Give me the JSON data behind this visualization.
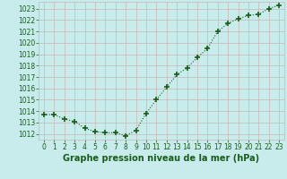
{
  "x": [
    0,
    1,
    2,
    3,
    4,
    5,
    6,
    7,
    8,
    9,
    10,
    11,
    12,
    13,
    14,
    15,
    16,
    17,
    18,
    19,
    20,
    21,
    22,
    23
  ],
  "y": [
    1013.7,
    1013.7,
    1013.3,
    1013.1,
    1012.5,
    1012.2,
    1012.1,
    1012.1,
    1011.85,
    1012.3,
    1013.8,
    1015.0,
    1016.1,
    1017.2,
    1017.8,
    1018.7,
    1019.5,
    1021.0,
    1021.7,
    1022.1,
    1022.4,
    1022.5,
    1023.0,
    1023.3
  ],
  "ylim_min": 1011.5,
  "ylim_max": 1023.6,
  "ytick_min": 1012,
  "ytick_max": 1023,
  "ytick_step": 1,
  "xlabel": "Graphe pression niveau de la mer (hPa)",
  "line_color": "#1a5c1a",
  "marker_color": "#1a5c1a",
  "bg_color": "#c8ecec",
  "grid_color": "#c8b4b4",
  "tick_fontsize": 5.5,
  "xlabel_fontsize": 7.0
}
